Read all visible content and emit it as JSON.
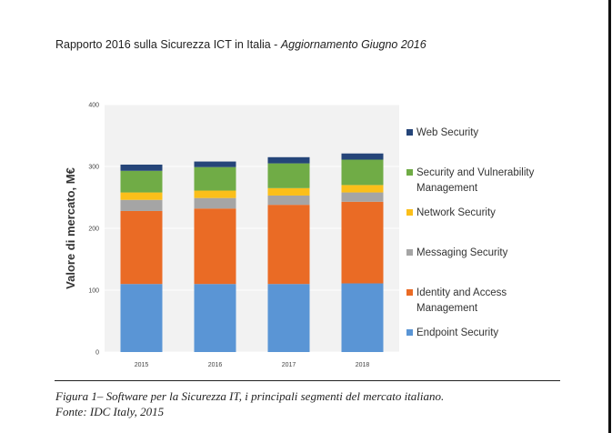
{
  "header": {
    "title_plain": "Rapporto 2016 sulla Sicurezza ICT in Italia - ",
    "title_italic": "Aggiornamento Giugno 2016"
  },
  "chart_data": {
    "type": "bar",
    "stacked": true,
    "categories": [
      "2015",
      "2016",
      "2017",
      "2018"
    ],
    "series": [
      {
        "name": "Endpoint Security",
        "color": "#5a95d5",
        "values": [
          110,
          110,
          110,
          111
        ]
      },
      {
        "name": "Identity and Access Management",
        "color": "#ea6b25",
        "values": [
          118,
          122,
          128,
          132
        ]
      },
      {
        "name": "Messaging Security",
        "color": "#a5a5a5",
        "values": [
          18,
          17,
          15,
          15
        ]
      },
      {
        "name": "Network Security",
        "color": "#fbbf1a",
        "values": [
          12,
          12,
          12,
          12
        ]
      },
      {
        "name": "Security and Vulnerability Management",
        "color": "#70ac46",
        "values": [
          35,
          38,
          40,
          41
        ]
      },
      {
        "name": "Web Security",
        "color": "#254579",
        "values": [
          10,
          9,
          10,
          10
        ]
      }
    ],
    "xlabel": "",
    "ylabel": "Valore di mercato, M€",
    "ylim": [
      0,
      400
    ],
    "yticks": [
      0,
      100,
      200,
      300,
      400
    ],
    "grid": true,
    "legend_placement": "right"
  },
  "caption": {
    "line1": "Figura 1– Software per la Sicurezza IT, i principali segmenti del mercato italiano.",
    "line2": "Fonte: IDC Italy, 2015"
  }
}
